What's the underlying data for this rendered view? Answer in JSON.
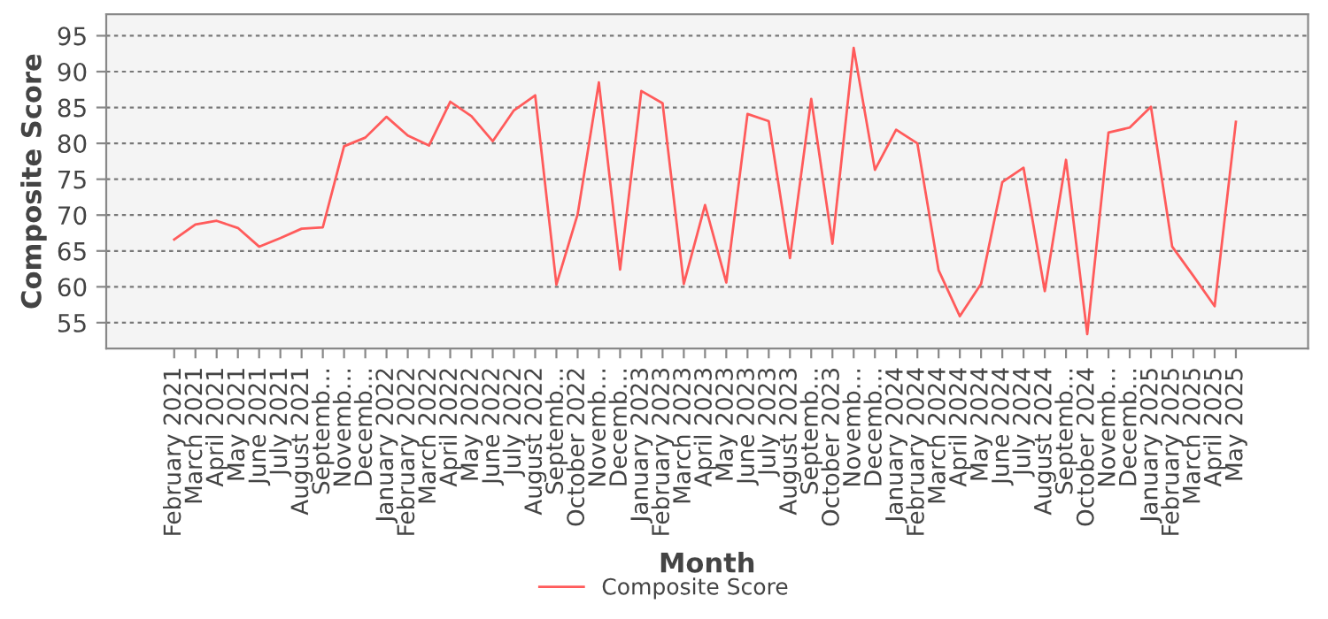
{
  "chart_data": {
    "type": "line",
    "xlabel": "Month",
    "ylabel": "Composite Score",
    "categories": [
      "February 2021",
      "March 2021",
      "April 2021",
      "May 2021",
      "June 2021",
      "July 2021",
      "August 2021",
      "Septemb…",
      "Novemb…",
      "Decemb…",
      "January 2022",
      "February 2022",
      "March 2022",
      "April 2022",
      "May 2022",
      "June 2022",
      "July 2022",
      "August 2022",
      "Septemb…",
      "October 2022",
      "Novemb…",
      "Decemb…",
      "January 2023",
      "February 2023",
      "March 2023",
      "April 2023",
      "May 2023",
      "June 2023",
      "July 2023",
      "August 2023",
      "Septemb…",
      "October 2023",
      "Novemb…",
      "Decemb…",
      "January 2024",
      "February 2024",
      "March 2024",
      "April 2024",
      "May 2024",
      "June 2024",
      "July 2024",
      "August 2024",
      "Septemb…",
      "October 2024",
      "Novemb…",
      "Decemb…",
      "January 2025",
      "February 2025",
      "March 2025",
      "April 2025",
      "May 2025"
    ],
    "series": [
      {
        "name": "Composite Score",
        "color": "#ff5b5b",
        "values": [
          66.6,
          68.7,
          69.2,
          68.2,
          65.6,
          66.8,
          68.1,
          68.3,
          79.6,
          80.8,
          83.7,
          81.1,
          79.7,
          85.8,
          83.8,
          80.3,
          84.6,
          86.7,
          60.3,
          70.1,
          88.5,
          62.4,
          87.3,
          85.6,
          60.4,
          71.4,
          60.6,
          84.1,
          83.1,
          64.0,
          86.2,
          66.0,
          93.3,
          76.3,
          81.9,
          80.0,
          62.3,
          55.9,
          60.4,
          74.6,
          76.6,
          59.4,
          77.7,
          53.4,
          81.5,
          82.2,
          85.1,
          65.6,
          61.5,
          57.3,
          83.0
        ]
      }
    ],
    "ylim": [
      51.4,
      98
    ],
    "yticks": [
      55,
      60,
      65,
      70,
      75,
      80,
      85,
      90,
      95
    ],
    "grid": "y",
    "legend": "bottom",
    "marker": "none",
    "line_style": "solid"
  }
}
